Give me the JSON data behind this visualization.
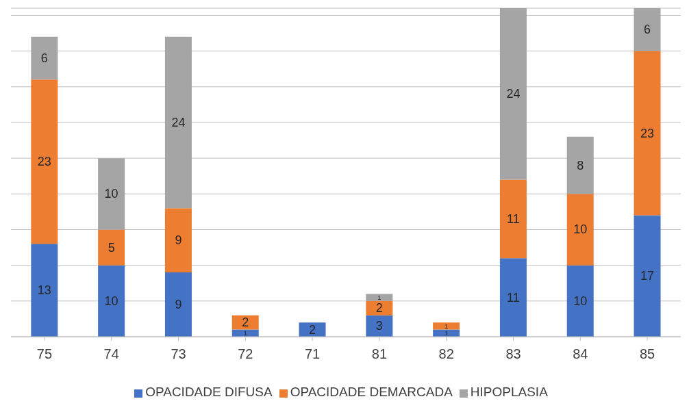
{
  "chart_data": {
    "type": "bar",
    "stacked": true,
    "categories": [
      "75",
      "74",
      "73",
      "72",
      "71",
      "81",
      "82",
      "83",
      "84",
      "85"
    ],
    "series": [
      {
        "name": "OPACIDADE DIFUSA",
        "color": "#4472c4",
        "values": [
          13,
          10,
          9,
          1,
          2,
          3,
          1,
          11,
          10,
          17
        ]
      },
      {
        "name": "OPACIDADE DEMARCADA",
        "color": "#ed7d31",
        "values": [
          23,
          5,
          9,
          2,
          null,
          2,
          1,
          11,
          10,
          23
        ]
      },
      {
        "name": "HIPOPLASIA",
        "color": "#a5a5a5",
        "values": [
          6,
          10,
          24,
          null,
          null,
          1,
          null,
          24,
          8,
          6
        ]
      }
    ],
    "ylim": [
      0,
      46
    ],
    "yticks": [
      {
        "value": 0,
        "label": null
      },
      {
        "value": 5,
        "label": null
      },
      {
        "value": 10,
        "label": null
      },
      {
        "value": 15,
        "label": null
      },
      {
        "value": 20,
        "label": null
      },
      {
        "value": 25,
        "label": null
      },
      {
        "value": 30,
        "label": null
      },
      {
        "value": 35,
        "label": null
      },
      {
        "value": 40,
        "label": null
      },
      {
        "value": 45,
        "label": null
      }
    ],
    "tick_labels": "x",
    "grid": "y",
    "legend": "bottom",
    "data_labels": true
  }
}
